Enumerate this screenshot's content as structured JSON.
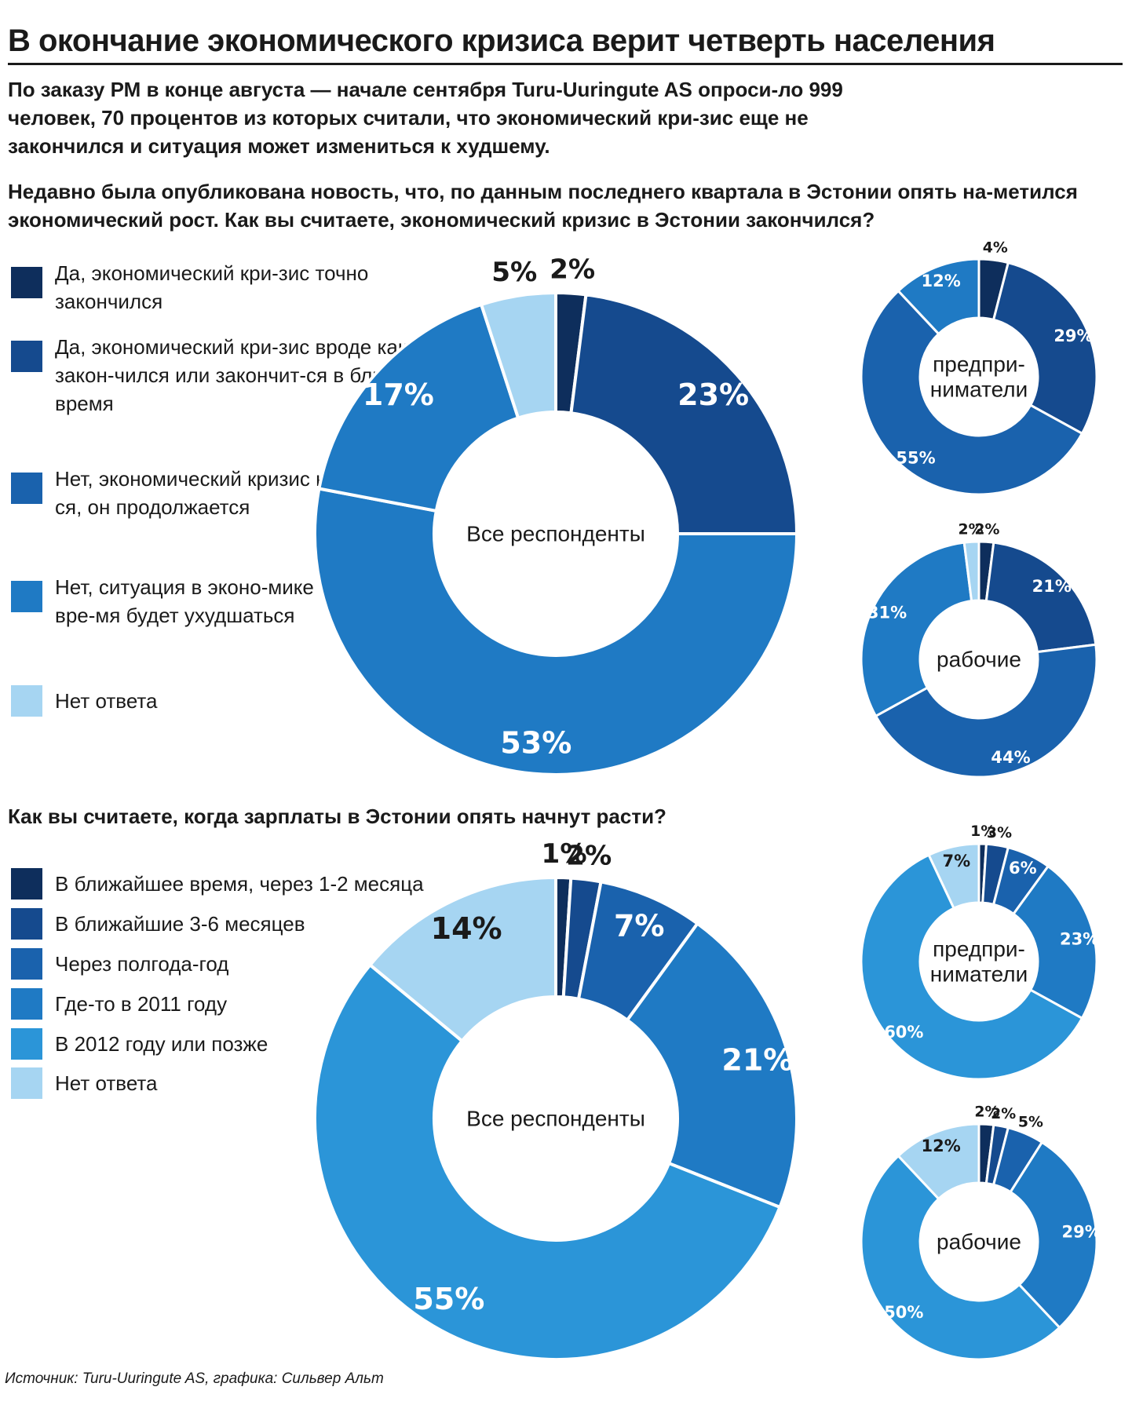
{
  "header": {
    "title": "В окончание экономического кризиса верит четверть населения",
    "intro": "По заказу РМ в конце августа — начале сентября Turu-Uuringute AS опроси-ло 999 человек, 70 процентов из которых считали, что экономический кри-зис еще не закончился и ситуация может измениться к худшему."
  },
  "footer": {
    "source": "Источник: Turu-Uuringute AS, графика: Сильвер Альт"
  },
  "colors": {
    "c1": "#0e2e5c",
    "c2": "#154a8e",
    "c3": "#1a62ad",
    "c4": "#1f7ac4",
    "c5": "#2b95d8",
    "c6": "#a6d5f2",
    "text_dark": "#1a1a1a"
  },
  "sections": [
    {
      "question": "Недавно была опубликована новость, что, по данным последнего квартала в Эстонии опять на-метился экономический рост. Как вы считаете, экономический кризис в Эстонии закончился?",
      "legend": [
        {
          "label": "Да, экономический кри-зис точно закончился",
          "color": "#0e2e5c"
        },
        {
          "label": "Да, экономический кри-зис вроде как закон-чился или закончит-ся в ближайшее время",
          "color": "#154a8e"
        },
        {
          "label": "Нет, экономический кризис не закончил-ся, он продолжается",
          "color": "#1a62ad"
        },
        {
          "label": "Нет, ситуация в эконо-мике еще какое-то вре-мя будет ухудшаться",
          "color": "#1f7ac4"
        },
        {
          "label": "Нет ответа",
          "color": "#a6d5f2"
        }
      ]
    },
    {
      "question": "Как вы считаете, когда зарплаты в Эстонии опять начнут расти?",
      "legend": [
        {
          "label": "В ближайшее время, через 1-2 месяца",
          "color": "#0e2e5c"
        },
        {
          "label": "В ближайшие 3-6 месяцев",
          "color": "#154a8e"
        },
        {
          "label": "Через полгода-год",
          "color": "#1a62ad"
        },
        {
          "label": "Где-то в 2011 году",
          "color": "#1f7ac4"
        },
        {
          "label": "В 2012 году или позже",
          "color": "#2b95d8"
        },
        {
          "label": "Нет ответа",
          "color": "#a6d5f2"
        }
      ]
    }
  ],
  "chart_data": [
    {
      "type": "pie",
      "center_label": "Все респонденты",
      "categories": [
        "Да, экономический кризис точно закончился",
        "Да, экономический кризис вроде как закончился или закончится в ближайшее время",
        "Нет, экономический кризис не закончился, он продолжается",
        "Нет, ситуация в экономике еще какое-то время будет ухудшаться",
        "Нет ответа"
      ],
      "values": [
        2,
        23,
        53,
        17,
        5
      ],
      "labels": [
        "2%",
        "23%",
        "53%",
        "17%",
        "5%"
      ],
      "colors": [
        "#0e2e5c",
        "#154a8e",
        "#1f7ac4",
        "#1f7ac4",
        "#a6d5f2"
      ]
    },
    {
      "type": "pie",
      "center_label": "предпри-\nниматели",
      "values": [
        4,
        29,
        55,
        12
      ],
      "labels": [
        "4%",
        "29%",
        "55%",
        "12%"
      ],
      "colors": [
        "#0e2e5c",
        "#154a8e",
        "#1a62ad",
        "#1f7ac4"
      ]
    },
    {
      "type": "pie",
      "center_label": "рабочие",
      "values": [
        2,
        21,
        44,
        31,
        2
      ],
      "labels": [
        "2%",
        "21%",
        "44%",
        "31%",
        "2%"
      ],
      "colors": [
        "#0e2e5c",
        "#154a8e",
        "#1a62ad",
        "#1f7ac4",
        "#a6d5f2"
      ]
    },
    {
      "type": "pie",
      "center_label": "Все респонденты",
      "values": [
        1,
        2,
        7,
        21,
        55,
        14
      ],
      "labels": [
        "1%",
        "2%",
        "7%",
        "21%",
        "55%",
        "14%"
      ],
      "colors": [
        "#0e2e5c",
        "#154a8e",
        "#1a62ad",
        "#1f7ac4",
        "#2b95d8",
        "#a6d5f2"
      ]
    },
    {
      "type": "pie",
      "center_label": "предпри-\nниматели",
      "values": [
        1,
        3,
        6,
        23,
        60,
        7
      ],
      "labels": [
        "1%",
        "3%",
        "6%",
        "23%",
        "60%",
        "7%"
      ],
      "colors": [
        "#0e2e5c",
        "#154a8e",
        "#1a62ad",
        "#1f7ac4",
        "#2b95d8",
        "#a6d5f2"
      ]
    },
    {
      "type": "pie",
      "center_label": "рабочие",
      "values": [
        2,
        2,
        5,
        29,
        50,
        12
      ],
      "labels": [
        "2%",
        "2%",
        "5%",
        "29%",
        "50%",
        "12%"
      ],
      "colors": [
        "#0e2e5c",
        "#154a8e",
        "#1a62ad",
        "#1f7ac4",
        "#2b95d8",
        "#a6d5f2"
      ]
    }
  ]
}
